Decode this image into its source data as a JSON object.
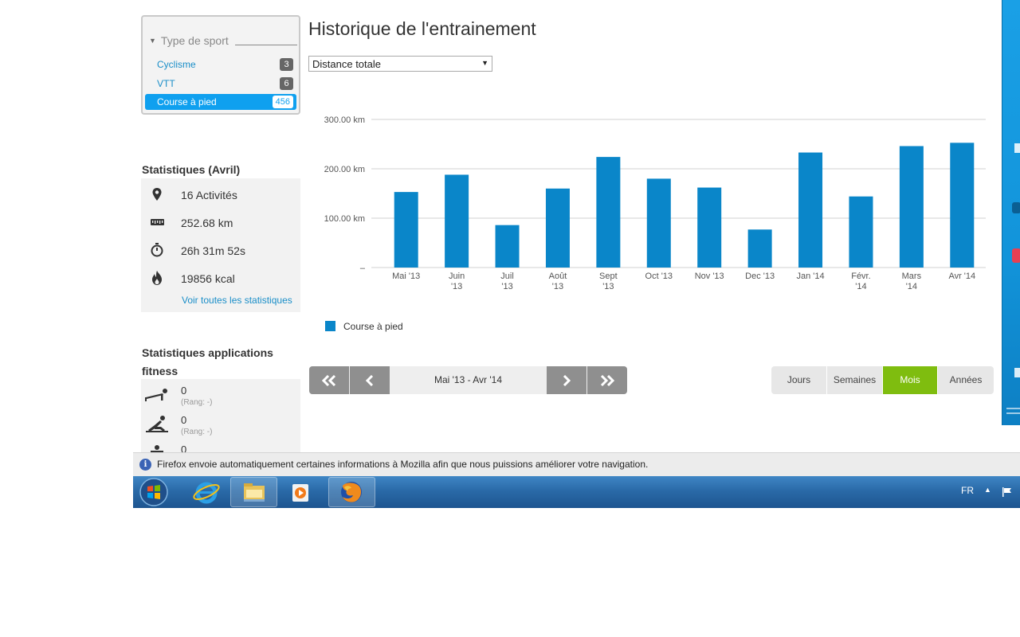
{
  "sport_filter": {
    "title": "Type de sport",
    "items": [
      {
        "label": "Cyclisme",
        "count": "3",
        "active": false
      },
      {
        "label": "VTT",
        "count": "6",
        "active": false
      },
      {
        "label": "Course à pied",
        "count": "456",
        "active": true
      }
    ]
  },
  "stats": {
    "title": "Statistiques (Avril)",
    "activities": "16 Activités",
    "distance": "252.68 km",
    "duration": "26h 31m 52s",
    "calories": "19856 kcal",
    "see_all": "Voir toutes les statistiques"
  },
  "fitness": {
    "title": "Statistiques applications fitness",
    "rows": [
      {
        "icon": "pushup-icon",
        "value": "0",
        "rank": "(Rang: -)"
      },
      {
        "icon": "situp-icon",
        "value": "0",
        "rank": "(Rang: -)"
      },
      {
        "icon": "squat-icon",
        "value": "0",
        "rank": ""
      }
    ]
  },
  "main": {
    "title": "Historique de l'entrainement",
    "metric_select": "Distance totale"
  },
  "chart_data": {
    "type": "bar",
    "categories": [
      "Mai '13",
      "Juin '13",
      "Juil '13",
      "Août '13",
      "Sept '13",
      "Oct '13",
      "Nov '13",
      "Dec '13",
      "Jan '14",
      "Févr. '14",
      "Mars '14",
      "Avr '14"
    ],
    "series": [
      {
        "name": "Course à pied",
        "values": [
          153,
          188,
          86,
          160,
          224,
          180,
          162,
          77,
          233,
          144,
          246,
          252.68
        ],
        "color": "#0a86c9"
      }
    ],
    "yticks": [
      "–",
      "100.00 km",
      "200.00 km",
      "300.00 km"
    ],
    "ylim": [
      0,
      300
    ],
    "grid": true,
    "legend_position": "bottom-left"
  },
  "pager": {
    "first": "«",
    "prev": "‹",
    "range": "Mai '13 - Avr '14",
    "next": "›",
    "last": "»"
  },
  "periods": [
    {
      "label": "Jours",
      "active": false
    },
    {
      "label": "Semaines",
      "active": false
    },
    {
      "label": "Mois",
      "active": true
    },
    {
      "label": "Années",
      "active": false
    }
  ],
  "notification": {
    "icon": "info-icon",
    "message": "Firefox envoie automatiquement certaines informations à Mozilla afin que nous puissions améliorer votre navigation."
  },
  "taskbar": {
    "apps": [
      "internet-explorer-icon",
      "file-explorer-icon",
      "media-player-icon",
      "firefox-icon"
    ],
    "language": "FR"
  },
  "colors": {
    "accent_blue": "#0fa0ef",
    "bar_blue": "#0a86c9",
    "active_green": "#7fbd0f",
    "link_blue": "#1a8ec8"
  }
}
